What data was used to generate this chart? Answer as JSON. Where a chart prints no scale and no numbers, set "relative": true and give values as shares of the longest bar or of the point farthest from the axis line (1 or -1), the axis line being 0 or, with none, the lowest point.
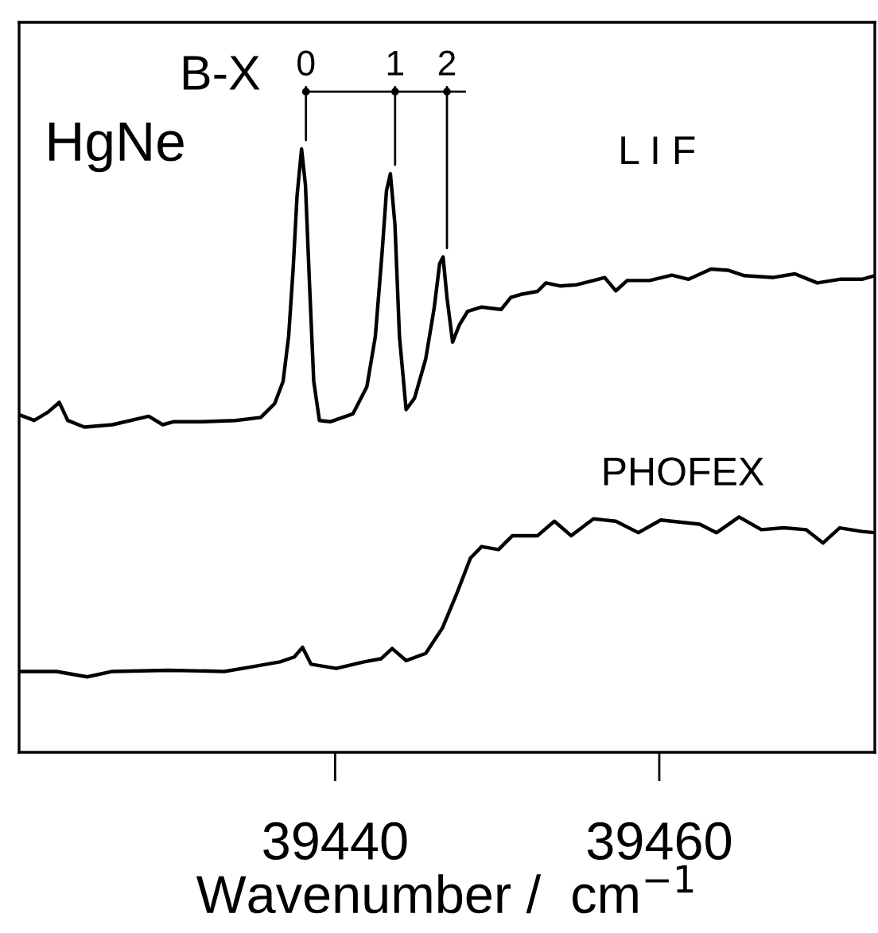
{
  "chart_data": {
    "type": "line",
    "relative": true,
    "xlabel": "Wavenumber /  cm$^{−1}$",
    "xlim": [
      39420.5,
      39473.3
    ],
    "xticks": [
      39440,
      39460
    ],
    "grid": false,
    "legend": false,
    "marker": "none",
    "line_style": "solid",
    "series": [
      {
        "color": "#000000",
        "x": [
          39420.56,
          39421.43,
          39422.29,
          39422.98,
          39423.5,
          39424.53,
          39426.26,
          39428.5,
          39429.36,
          39430.06,
          39431.78,
          39433.85,
          39435.41,
          39436.27,
          39436.79,
          39437.13,
          39437.41,
          39437.65,
          39437.93,
          39438.17,
          39438.41,
          39438.68,
          39439.03,
          39439.72,
          39441.1,
          39441.96,
          39442.48,
          39442.9,
          39443.17,
          39443.41,
          39443.69,
          39443.97,
          39444.38,
          39444.9,
          39445.59,
          39446.11,
          39446.45,
          39446.66,
          39446.9,
          39447.25,
          39447.66,
          39448.18,
          39449.04,
          39450.25,
          39450.84,
          39451.46,
          39452.49,
          39453.01,
          39453.87,
          39454.91,
          39455.94,
          39456.63,
          39457.32,
          39458.02,
          39459.4,
          39460.78,
          39461.81,
          39463.19,
          39464.23,
          39465.26,
          39466.99,
          39468.37,
          39469.75,
          39471.13,
          39472.51,
          39473.3
        ],
        "values": [
          0.559,
          0.55,
          0.564,
          0.58,
          0.55,
          0.539,
          0.543,
          0.557,
          0.543,
          0.548,
          0.548,
          0.55,
          0.555,
          0.578,
          0.615,
          0.689,
          0.801,
          0.922,
          1.0,
          0.94,
          0.782,
          0.615,
          0.55,
          0.548,
          0.561,
          0.606,
          0.689,
          0.829,
          0.931,
          0.959,
          0.875,
          0.689,
          0.568,
          0.587,
          0.652,
          0.736,
          0.81,
          0.821,
          0.754,
          0.68,
          0.708,
          0.731,
          0.738,
          0.734,
          0.754,
          0.759,
          0.764,
          0.778,
          0.773,
          0.775,
          0.782,
          0.787,
          0.765,
          0.782,
          0.782,
          0.791,
          0.784,
          0.801,
          0.799,
          0.79,
          0.787,
          0.793,
          0.778,
          0.784,
          0.784,
          0.79
        ]
      },
      {
        "color": "#000000",
        "x": [
          39420.56,
          39422.81,
          39424.7,
          39426.26,
          39429.71,
          39433.16,
          39434.72,
          39436.61,
          39437.48,
          39437.99,
          39438.51,
          39440.07,
          39441.79,
          39442.83,
          39443.52,
          39444.38,
          39445.59,
          39446.62,
          39447.49,
          39448.35,
          39449.04,
          39450.08,
          39450.94,
          39452.49,
          39453.53,
          39454.56,
          39455.94,
          39457.32,
          39458.71,
          39460.09,
          39462.5,
          39463.54,
          39464.92,
          39466.3,
          39467.68,
          39469.06,
          39470.1,
          39471.13,
          39472.51,
          39473.3
        ],
        "values": [
          0.134,
          0.134,
          0.125,
          0.134,
          0.136,
          0.134,
          0.141,
          0.15,
          0.158,
          0.174,
          0.146,
          0.139,
          0.15,
          0.155,
          0.172,
          0.152,
          0.164,
          0.206,
          0.262,
          0.322,
          0.341,
          0.336,
          0.359,
          0.359,
          0.383,
          0.359,
          0.387,
          0.383,
          0.364,
          0.385,
          0.378,
          0.364,
          0.39,
          0.369,
          0.372,
          0.369,
          0.347,
          0.372,
          0.366,
          0.364
        ]
      }
    ],
    "annotations": [
      "HgNe",
      "B-X",
      "L I F",
      "PHOFEX",
      {
        "text": "0",
        "x": 39438.2,
        "y": 1.0
      },
      {
        "text": "1",
        "x": 39443.7,
        "y": 0.959
      },
      {
        "text": "2",
        "x": 39446.9,
        "y": 0.821
      }
    ]
  }
}
